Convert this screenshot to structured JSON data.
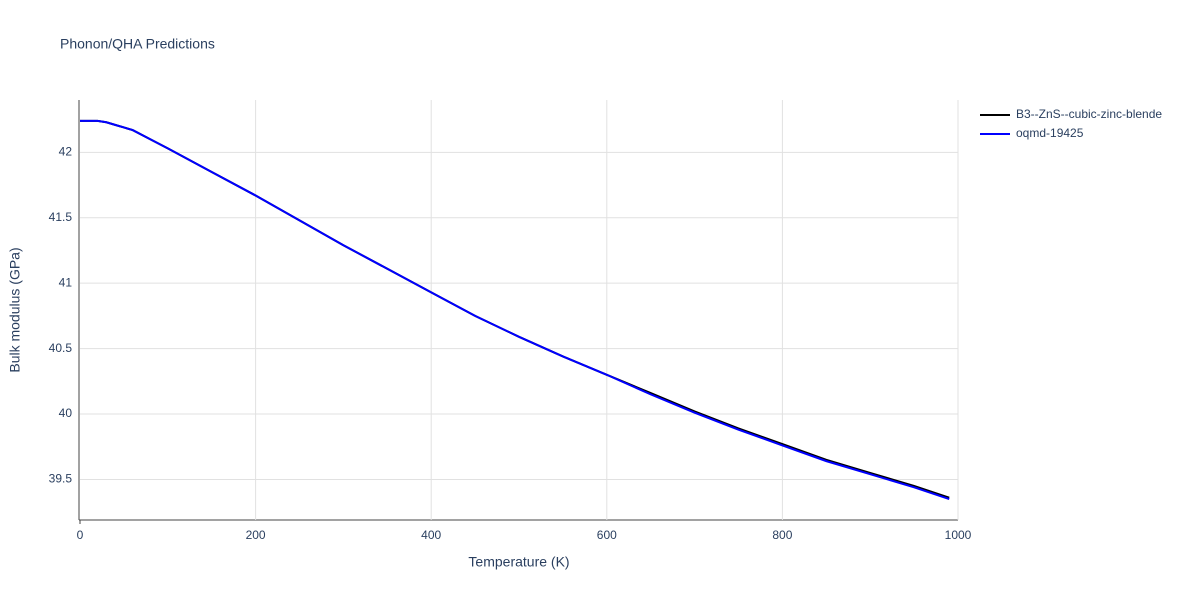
{
  "chart_data": {
    "type": "line",
    "title": "Phonon/QHA Predictions",
    "x_label": "Temperature (K)",
    "y_label": "Bulk modulus (GPa)",
    "x": [
      0,
      10,
      20,
      30,
      40,
      50,
      60,
      80,
      100,
      150,
      200,
      250,
      300,
      350,
      400,
      450,
      500,
      550,
      600,
      650,
      700,
      750,
      800,
      850,
      900,
      950,
      990
    ],
    "series": [
      {
        "name": "B3--ZnS--cubic-zinc-blende",
        "color": "#000000",
        "values": [
          42.24,
          42.24,
          42.24,
          42.23,
          42.21,
          42.19,
          42.17,
          42.1,
          42.03,
          41.85,
          41.67,
          41.48,
          41.29,
          41.11,
          40.93,
          40.75,
          40.59,
          40.44,
          40.3,
          40.16,
          40.02,
          39.89,
          39.77,
          39.65,
          39.55,
          39.45,
          39.36
        ]
      },
      {
        "name": "oqmd-19425",
        "color": "#0000ff",
        "values": [
          42.24,
          42.24,
          42.24,
          42.23,
          42.21,
          42.19,
          42.17,
          42.1,
          42.03,
          41.85,
          41.67,
          41.48,
          41.29,
          41.11,
          40.93,
          40.75,
          40.59,
          40.44,
          40.3,
          40.15,
          40.01,
          39.88,
          39.76,
          39.64,
          39.54,
          39.44,
          39.35
        ]
      }
    ],
    "xlim": [
      0,
      1000
    ],
    "xticks": [
      0,
      200,
      400,
      600,
      800,
      1000
    ],
    "ylim": [
      39.19,
      42.4
    ],
    "yticks": [
      39.5,
      40,
      40.5,
      41,
      41.5,
      42
    ],
    "grid": true,
    "legend": "top-right"
  }
}
